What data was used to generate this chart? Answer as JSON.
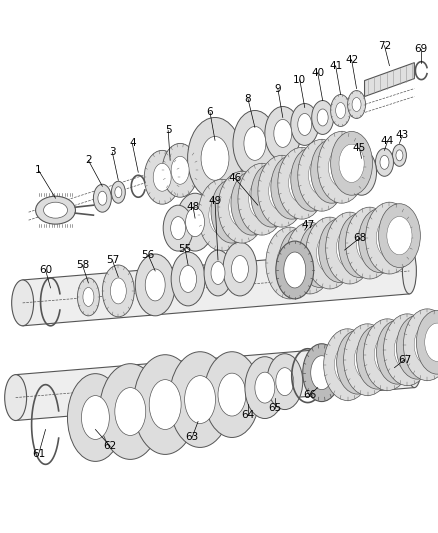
{
  "bg_color": "#ffffff",
  "fig_width": 4.39,
  "fig_height": 5.33,
  "dpi": 100,
  "gray": "#555555",
  "lgray": "#999999",
  "dgray": "#333333",
  "fill_light": "#dddddd",
  "fill_mid": "#bbbbbb",
  "fill_dark": "#888888"
}
